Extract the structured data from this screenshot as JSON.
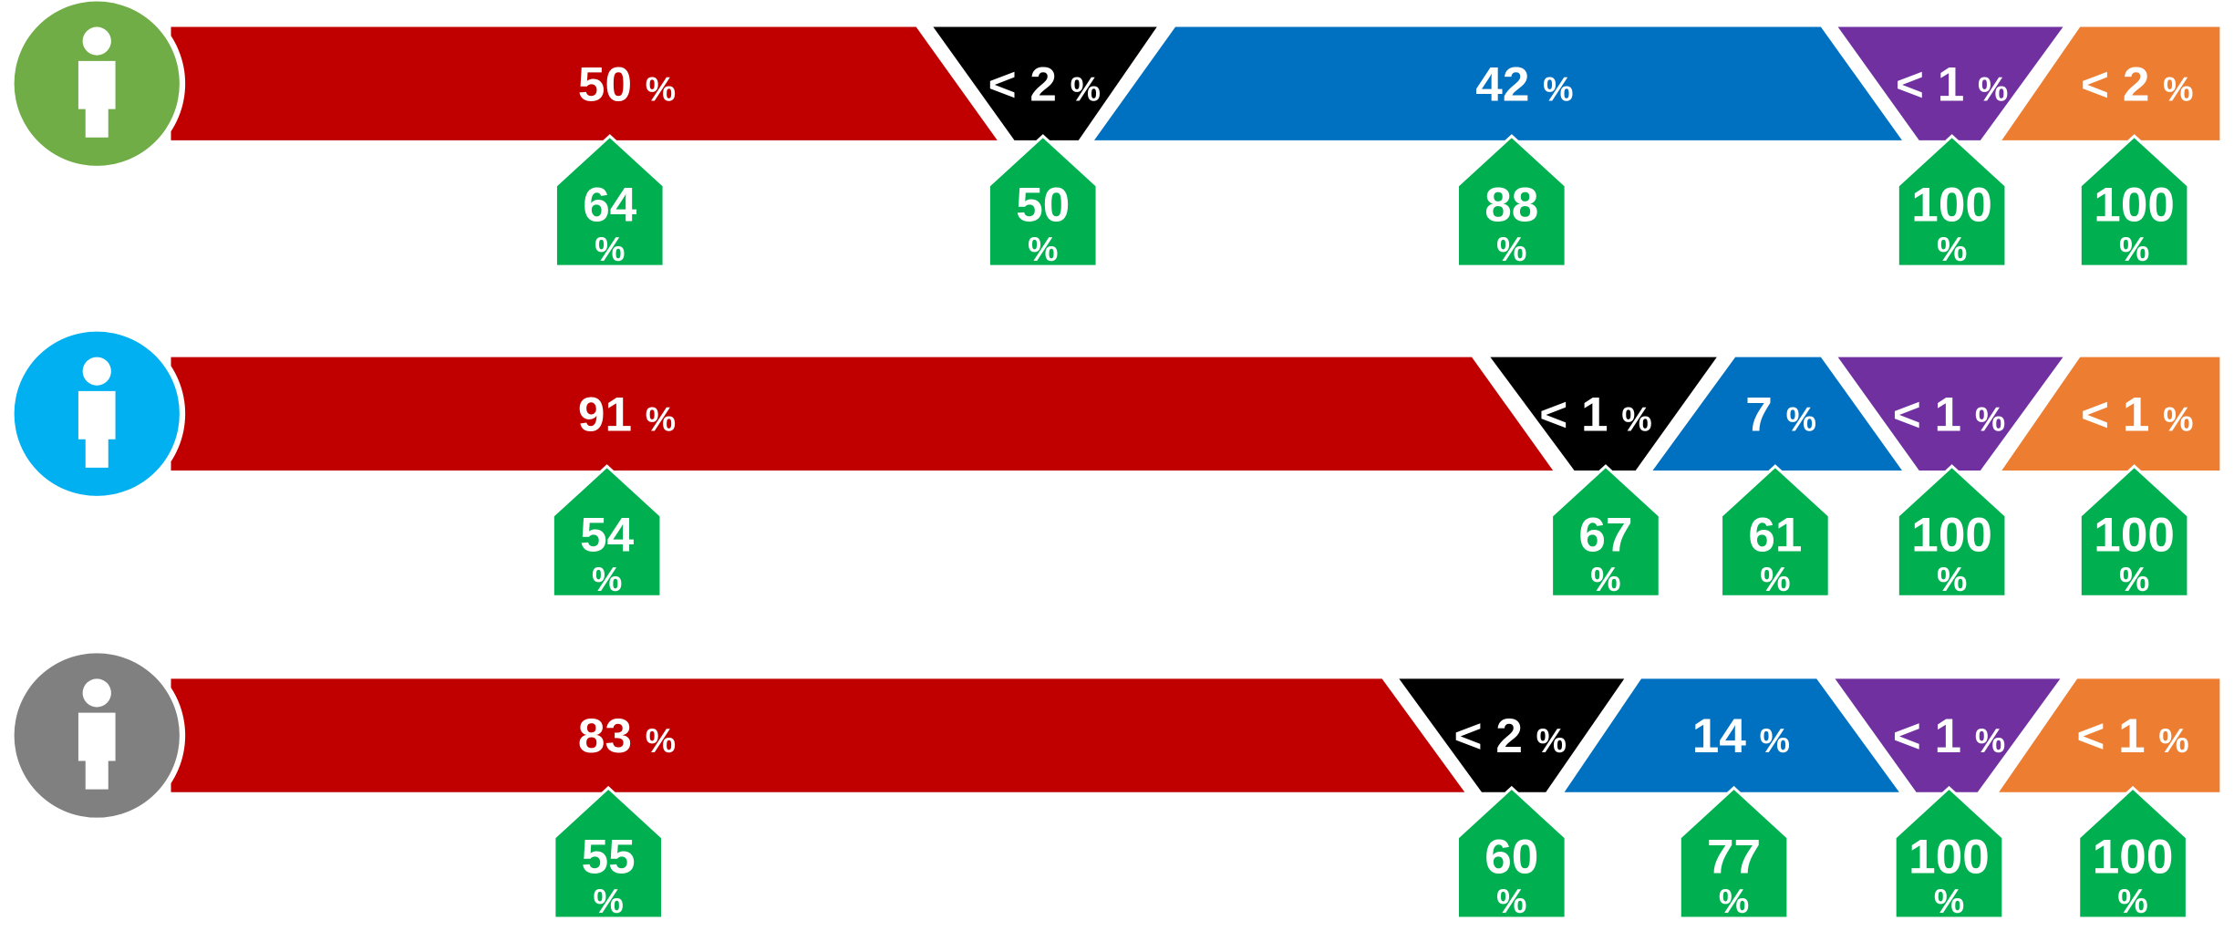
{
  "rows": [
    {
      "segments": [
        {
          "text": "50",
          "unit": "%",
          "house": {
            "text": "64",
            "unit": "%"
          }
        },
        {
          "text": "< 2",
          "unit": "%",
          "house": {
            "text": "50",
            "unit": "%"
          }
        },
        {
          "text": "42",
          "unit": "%",
          "house": {
            "text": "88",
            "unit": "%"
          }
        },
        {
          "text": "< 1",
          "unit": "%",
          "house": {
            "text": "100",
            "unit": "%"
          }
        },
        {
          "text": "< 2",
          "unit": "%",
          "house": {
            "text": "100",
            "unit": "%"
          }
        }
      ]
    },
    {
      "segments": [
        {
          "text": "91",
          "unit": "%",
          "house": {
            "text": "54",
            "unit": "%"
          }
        },
        {
          "text": "< 1",
          "unit": "%",
          "house": {
            "text": "67",
            "unit": "%"
          }
        },
        {
          "text": "7",
          "unit": "%",
          "house": {
            "text": "61",
            "unit": "%"
          }
        },
        {
          "text": "< 1",
          "unit": "%",
          "house": {
            "text": "100",
            "unit": "%"
          }
        },
        {
          "text": "< 1",
          "unit": "%",
          "house": {
            "text": "100",
            "unit": "%"
          }
        }
      ]
    },
    {
      "segments": [
        {
          "text": "83",
          "unit": "%",
          "house": {
            "text": "55",
            "unit": "%"
          }
        },
        {
          "text": "< 2",
          "unit": "%",
          "house": {
            "text": "60",
            "unit": "%"
          }
        },
        {
          "text": "14",
          "unit": "%",
          "house": {
            "text": "77",
            "unit": "%"
          }
        },
        {
          "text": "< 1",
          "unit": "%",
          "house": {
            "text": "100",
            "unit": "%"
          }
        },
        {
          "text": "< 1",
          "unit": "%",
          "house": {
            "text": "100",
            "unit": "%"
          }
        }
      ]
    }
  ]
}
